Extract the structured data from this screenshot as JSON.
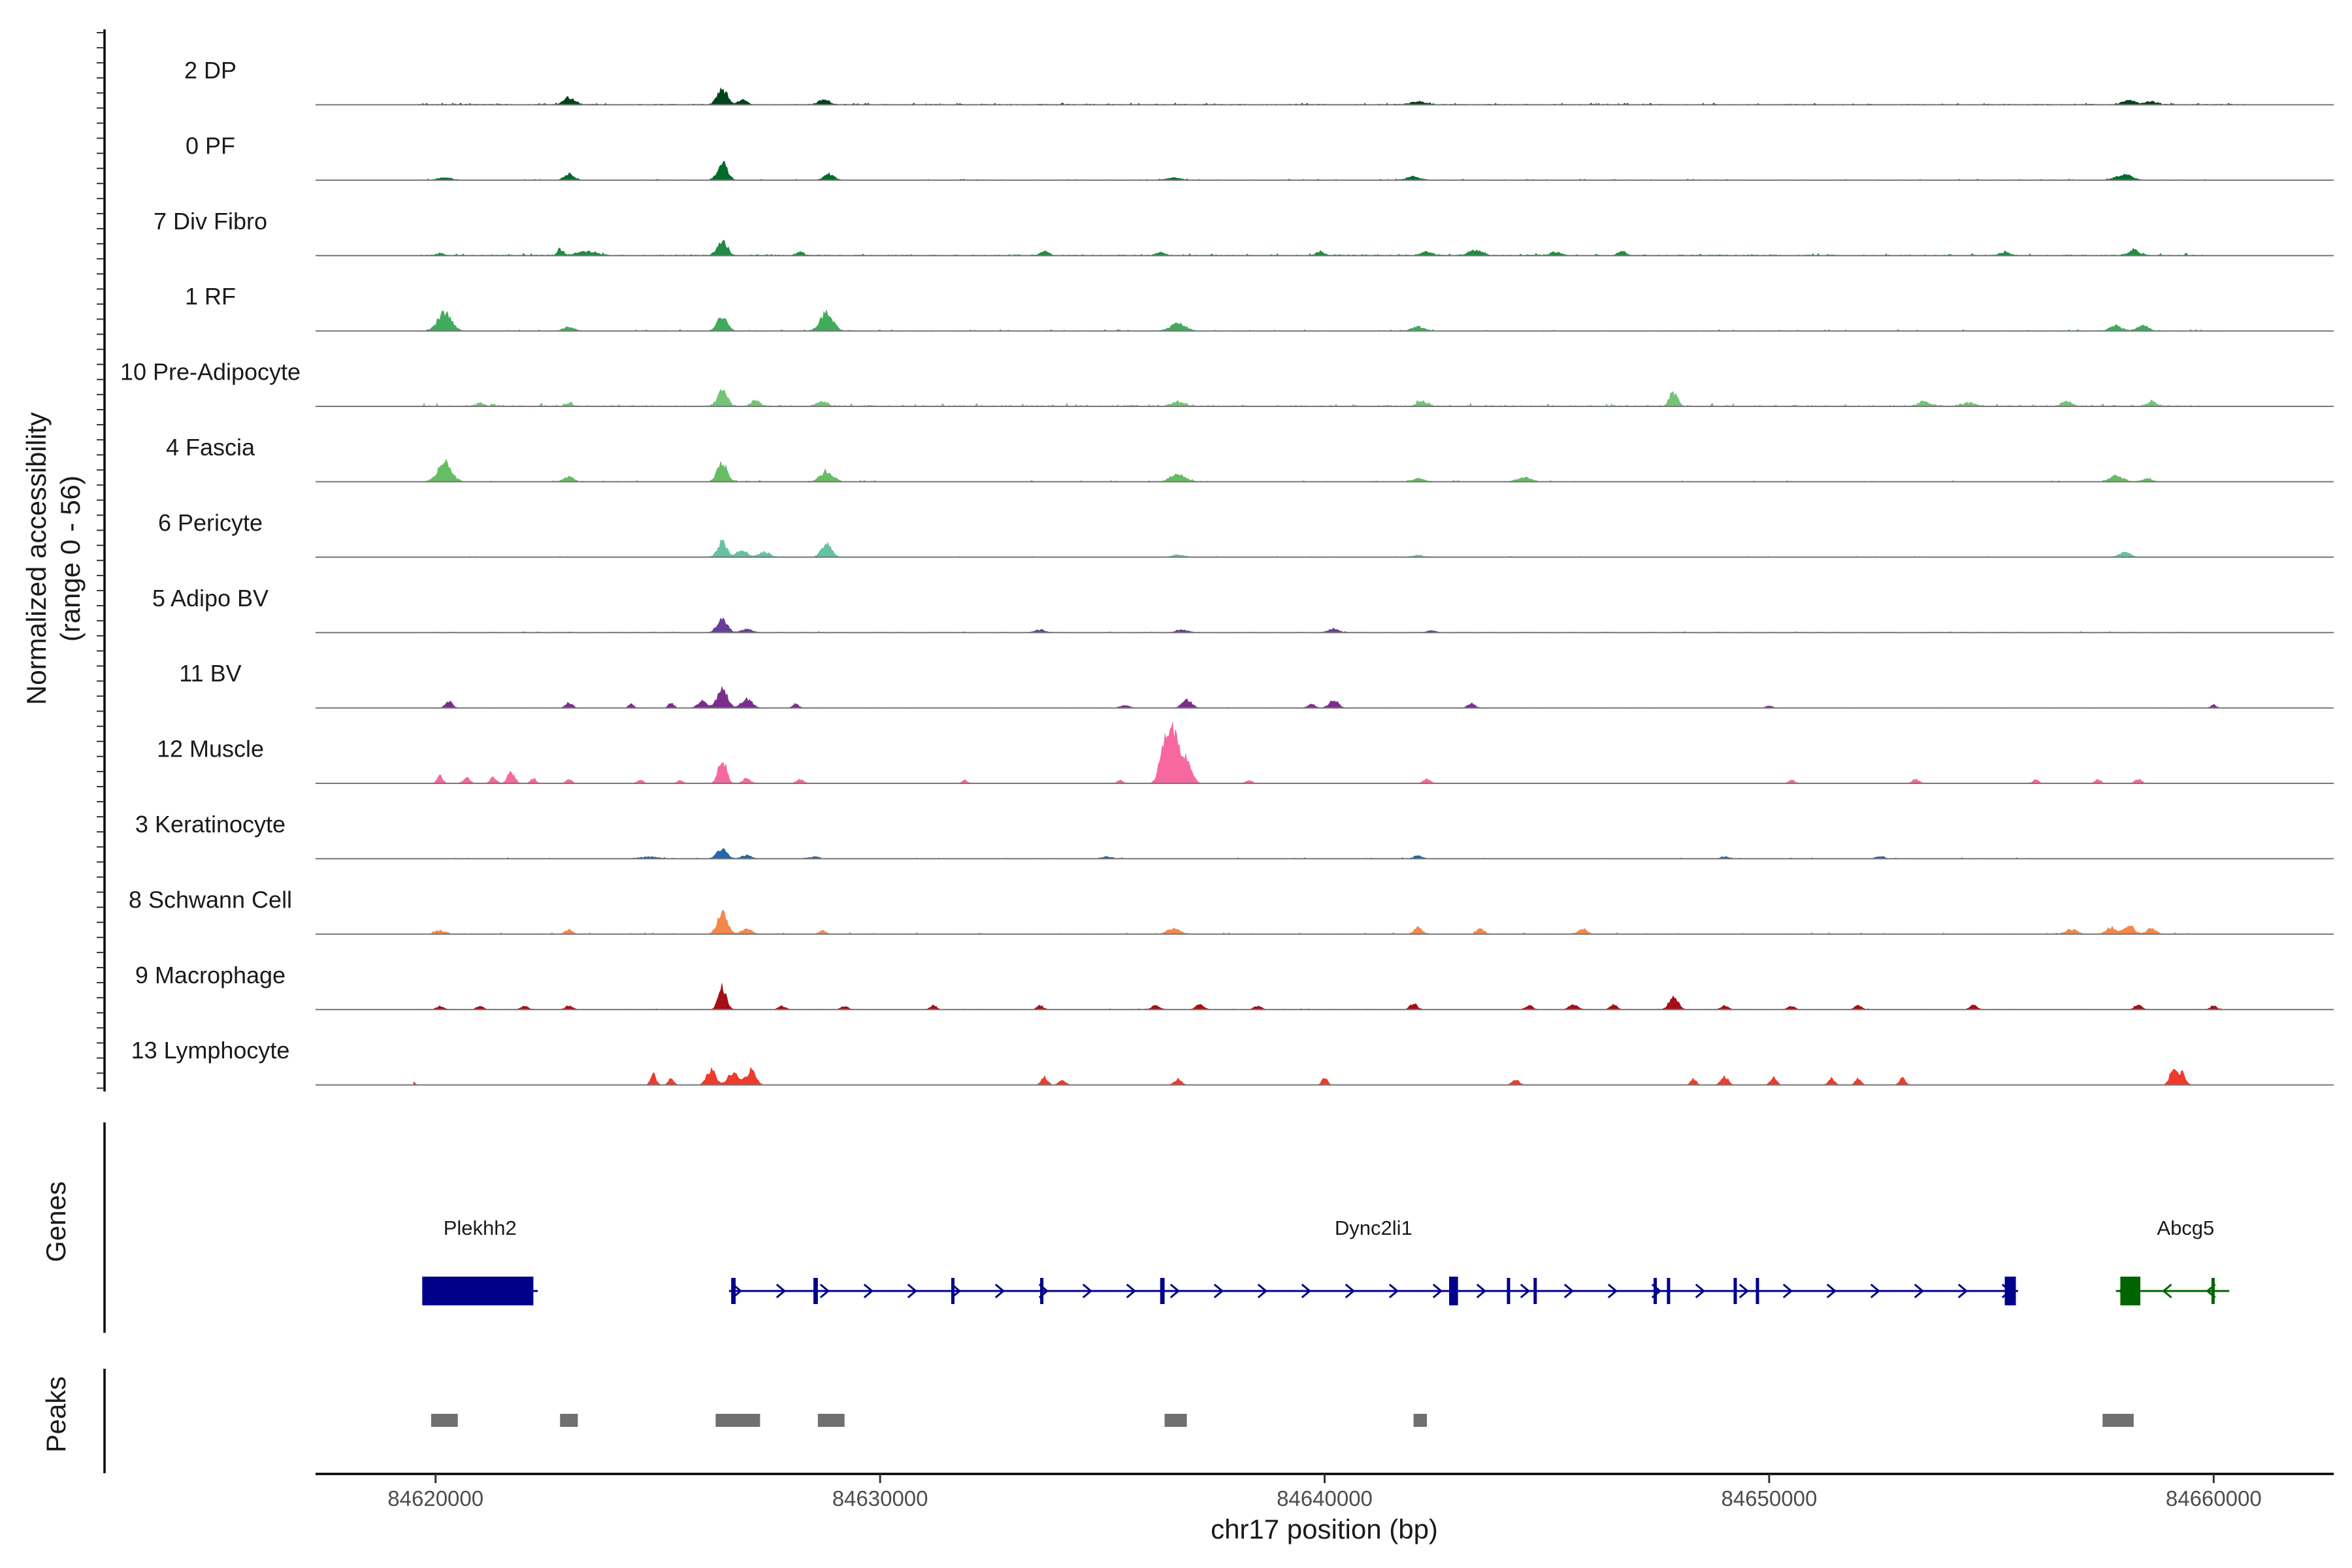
{
  "chart_data": {
    "type": "coverage-track",
    "region": {
      "chrom": "chr17",
      "start": 84617300,
      "end": 84662700
    },
    "y_axis_title": [
      "Normalized accessibility",
      "(range 0 - 56)"
    ],
    "y_range": [
      0,
      56
    ],
    "x_axis_title": "chr17 position (bp)",
    "x_ticks": [
      {
        "value": 84620000,
        "label": "84620000"
      },
      {
        "value": 84630000,
        "label": "84630000"
      },
      {
        "value": 84640000,
        "label": "84640000"
      },
      {
        "value": 84650000,
        "label": "84650000"
      },
      {
        "value": 84660000,
        "label": "84660000"
      }
    ],
    "tracks": [
      {
        "name": "2 DP",
        "color": "#00441b",
        "region": [
          84619500,
          84660700
        ],
        "noise": 0.6,
        "density": 0.85,
        "seed": 11,
        "peaks": [
          [
            84623000,
            5.5,
            120
          ],
          [
            84626450,
            12.0,
            110
          ],
          [
            84626900,
            4.0,
            90
          ],
          [
            84628750,
            4.5,
            110
          ],
          [
            84642100,
            2.5,
            150
          ],
          [
            84658100,
            2.8,
            160
          ],
          [
            84658600,
            2.2,
            120
          ]
        ]
      },
      {
        "name": "0 PF",
        "color": "#006d2c",
        "region": [
          84619500,
          84660700
        ],
        "noise": 0.4,
        "density": 0.8,
        "seed": 12,
        "peaks": [
          [
            84620200,
            2.0,
            140
          ],
          [
            84623000,
            4.5,
            100
          ],
          [
            84626450,
            13.0,
            110
          ],
          [
            84628850,
            4.5,
            110
          ],
          [
            84636600,
            1.5,
            150
          ],
          [
            84642000,
            2.5,
            150
          ],
          [
            84657900,
            3.0,
            150
          ],
          [
            84658100,
            2.5,
            120
          ]
        ]
      },
      {
        "name": "7 Div Fibro",
        "color": "#238b45",
        "region": [
          84619600,
          84659800
        ],
        "noise": 0.8,
        "density": 0.5,
        "seed": 13,
        "peaks": [
          [
            84620100,
            2.0,
            80
          ],
          [
            84622800,
            5.0,
            60
          ],
          [
            84623400,
            3.0,
            220
          ],
          [
            84626450,
            11.0,
            110
          ],
          [
            84628200,
            2.5,
            80
          ],
          [
            84633700,
            3.0,
            100
          ],
          [
            84636300,
            2.5,
            90
          ],
          [
            84639900,
            3.0,
            90
          ],
          [
            84642300,
            3.0,
            120
          ],
          [
            84643400,
            4.0,
            150
          ],
          [
            84645200,
            2.5,
            130
          ],
          [
            84646700,
            3.0,
            90
          ],
          [
            84655300,
            2.5,
            100
          ],
          [
            84658200,
            4.0,
            110
          ]
        ]
      },
      {
        "name": "1 RF",
        "color": "#41ab5d",
        "region": [
          84619600,
          84660100
        ],
        "noise": 0.5,
        "density": 0.6,
        "seed": 14,
        "peaks": [
          [
            84620200,
            14.0,
            150
          ],
          [
            84623000,
            3.0,
            120
          ],
          [
            84626450,
            11.0,
            110
          ],
          [
            84628800,
            14.0,
            140
          ],
          [
            84636700,
            5.5,
            170
          ],
          [
            84642100,
            3.0,
            140
          ],
          [
            84657800,
            4.0,
            130
          ],
          [
            84658400,
            4.0,
            130
          ]
        ]
      },
      {
        "name": "10 Pre-Adipocyte",
        "color": "#74c476",
        "region": [
          84619600,
          84659800
        ],
        "noise": 1.1,
        "density": 0.45,
        "seed": 15,
        "peaks": [
          [
            84621000,
            2.5,
            90
          ],
          [
            84623000,
            2.5,
            80
          ],
          [
            84626450,
            12.0,
            110
          ],
          [
            84627200,
            5.0,
            90
          ],
          [
            84628700,
            4.0,
            110
          ],
          [
            84636700,
            3.5,
            150
          ],
          [
            84642200,
            4.0,
            120
          ],
          [
            84647850,
            11.0,
            90
          ],
          [
            84653500,
            3.5,
            140
          ],
          [
            84654500,
            3.0,
            130
          ],
          [
            84656700,
            3.5,
            120
          ],
          [
            84658600,
            3.5,
            100
          ]
        ]
      },
      {
        "name": "4 Fascia",
        "color": "#66bd63",
        "region": [
          84619600,
          84660000
        ],
        "noise": 0.5,
        "density": 0.55,
        "seed": 16,
        "peaks": [
          [
            84620200,
            15.0,
            150
          ],
          [
            84623000,
            4.0,
            110
          ],
          [
            84626450,
            14.0,
            110
          ],
          [
            84628800,
            8.0,
            140
          ],
          [
            84636700,
            6.5,
            160
          ],
          [
            84642100,
            2.5,
            130
          ],
          [
            84644500,
            3.0,
            140
          ],
          [
            84657800,
            4.5,
            140
          ],
          [
            84658500,
            2.5,
            110
          ]
        ]
      },
      {
        "name": "6 Pericyte",
        "color": "#66c2a5",
        "region": [
          84619600,
          84659900
        ],
        "noise": 0.35,
        "density": 0.4,
        "seed": 17,
        "peaks": [
          [
            84626450,
            12.0,
            100
          ],
          [
            84626900,
            6.0,
            110
          ],
          [
            84627400,
            4.0,
            120
          ],
          [
            84628800,
            11.0,
            110
          ],
          [
            84636700,
            2.0,
            120
          ],
          [
            84642100,
            1.5,
            120
          ],
          [
            84658000,
            3.5,
            130
          ]
        ]
      },
      {
        "name": "5 Adipo BV",
        "color": "#6a3d9a",
        "region": [
          84619600,
          84659900
        ],
        "noise": 0.35,
        "density": 0.5,
        "seed": 18,
        "peaks": [
          [
            84626450,
            10.0,
            110
          ],
          [
            84627000,
            2.5,
            120
          ],
          [
            84633600,
            2.0,
            110
          ],
          [
            84636800,
            2.0,
            130
          ],
          [
            84640200,
            3.0,
            110
          ],
          [
            84642400,
            1.5,
            100
          ]
        ]
      },
      {
        "name": "11 BV",
        "color": "#7b2d8e",
        "region": [
          84619500,
          84660300
        ],
        "noise": 0.2,
        "density": 0.15,
        "seed": 19,
        "peaks": [
          [
            84620300,
            5.0,
            80
          ],
          [
            84623000,
            4.0,
            80
          ],
          [
            84624400,
            3.0,
            60
          ],
          [
            84625300,
            4.0,
            60
          ],
          [
            84626000,
            5.5,
            100
          ],
          [
            84626450,
            15.0,
            110
          ],
          [
            84627000,
            7.0,
            120
          ],
          [
            84628100,
            3.0,
            70
          ],
          [
            84635500,
            2.0,
            100
          ],
          [
            84636900,
            6.0,
            110
          ],
          [
            84639700,
            3.0,
            80
          ],
          [
            84640200,
            6.5,
            100
          ],
          [
            84643300,
            3.5,
            80
          ],
          [
            84650000,
            2.0,
            70
          ],
          [
            84660000,
            2.5,
            60
          ]
        ]
      },
      {
        "name": "12 Muscle",
        "color": "#f768a1",
        "region": [
          84619500,
          84659800
        ],
        "noise": 0.2,
        "density": 0.12,
        "seed": 20,
        "peaks": [
          [
            84620100,
            6.0,
            60
          ],
          [
            84620700,
            4.0,
            80
          ],
          [
            84621300,
            4.5,
            70
          ],
          [
            84621700,
            9.0,
            80
          ],
          [
            84622200,
            4.0,
            60
          ],
          [
            84623000,
            3.0,
            70
          ],
          [
            84624600,
            3.0,
            60
          ],
          [
            84625500,
            2.5,
            60
          ],
          [
            84626450,
            19.0,
            90
          ],
          [
            84627000,
            4.0,
            80
          ],
          [
            84628200,
            3.0,
            80
          ],
          [
            84631900,
            2.5,
            60
          ],
          [
            84635400,
            2.5,
            60
          ],
          [
            84636400,
            27.0,
            110
          ],
          [
            84636600,
            38.0,
            120
          ],
          [
            84636900,
            17.0,
            110
          ],
          [
            84638300,
            2.5,
            70
          ],
          [
            84642300,
            3.0,
            80
          ],
          [
            84650500,
            3.0,
            60
          ],
          [
            84653300,
            3.5,
            70
          ],
          [
            84656000,
            3.0,
            60
          ],
          [
            84657400,
            3.0,
            60
          ],
          [
            84658300,
            3.5,
            70
          ]
        ]
      },
      {
        "name": "3 Keratinocyte",
        "color": "#2166ac",
        "region": [
          84619500,
          84660200
        ],
        "noise": 0.4,
        "density": 0.35,
        "seed": 21,
        "peaks": [
          [
            84624800,
            1.5,
            200
          ],
          [
            84626450,
            8.0,
            110
          ],
          [
            84627000,
            2.5,
            120
          ],
          [
            84628500,
            1.5,
            120
          ],
          [
            84635100,
            1.5,
            120
          ],
          [
            84642100,
            2.5,
            90
          ],
          [
            84649000,
            1.5,
            100
          ],
          [
            84652500,
            1.5,
            100
          ]
        ]
      },
      {
        "name": "8 Schwann Cell",
        "color": "#f4874b",
        "region": [
          84619500,
          84659800
        ],
        "noise": 0.6,
        "density": 0.4,
        "seed": 22,
        "peaks": [
          [
            84620100,
            2.5,
            120
          ],
          [
            84623000,
            3.5,
            80
          ],
          [
            84626450,
            17.0,
            110
          ],
          [
            84627000,
            4.0,
            120
          ],
          [
            84628700,
            2.5,
            80
          ],
          [
            84636600,
            5.0,
            130
          ],
          [
            84642100,
            5.0,
            90
          ],
          [
            84643500,
            4.0,
            80
          ],
          [
            84645800,
            4.0,
            100
          ],
          [
            84656800,
            3.5,
            130
          ],
          [
            84657700,
            5.0,
            120
          ],
          [
            84658100,
            7.0,
            110
          ],
          [
            84658600,
            4.5,
            100
          ]
        ]
      },
      {
        "name": "9 Macrophage",
        "color": "#a50f15",
        "region": [
          84619500,
          84660300
        ],
        "noise": 0.3,
        "density": 0.25,
        "seed": 23,
        "peaks": [
          [
            84620100,
            2.5,
            80
          ],
          [
            84621000,
            3.0,
            70
          ],
          [
            84622000,
            3.0,
            80
          ],
          [
            84623000,
            3.0,
            80
          ],
          [
            84626450,
            17.0,
            90
          ],
          [
            84627800,
            2.5,
            80
          ],
          [
            84629200,
            2.5,
            80
          ],
          [
            84631200,
            3.0,
            70
          ],
          [
            84633600,
            3.0,
            70
          ],
          [
            84636200,
            3.0,
            90
          ],
          [
            84637200,
            4.0,
            90
          ],
          [
            84638500,
            3.0,
            80
          ],
          [
            84642000,
            4.5,
            80
          ],
          [
            84644600,
            3.0,
            80
          ],
          [
            84645600,
            3.5,
            100
          ],
          [
            84646500,
            3.5,
            80
          ],
          [
            84647850,
            10.0,
            100
          ],
          [
            84649000,
            3.0,
            80
          ],
          [
            84650500,
            2.5,
            80
          ],
          [
            84652000,
            3.0,
            80
          ],
          [
            84654600,
            3.5,
            80
          ],
          [
            84658300,
            3.5,
            80
          ],
          [
            84660000,
            3.0,
            70
          ]
        ]
      },
      {
        "name": "13 Lymphocyte",
        "color": "#ef3b2c",
        "region": [
          84619500,
          84660000
        ],
        "noise": 0.1,
        "density": 0.05,
        "seed": 24,
        "peaks": [
          [
            84619500,
            2.5,
            40
          ],
          [
            84624900,
            8.5,
            60
          ],
          [
            84625300,
            5.0,
            60
          ],
          [
            84626200,
            12.0,
            100
          ],
          [
            84626700,
            10.0,
            120
          ],
          [
            84627100,
            12.0,
            100
          ],
          [
            84633700,
            6.0,
            70
          ],
          [
            84634100,
            4.0,
            70
          ],
          [
            84636700,
            4.5,
            80
          ],
          [
            84640000,
            6.5,
            60
          ],
          [
            84644300,
            4.0,
            80
          ],
          [
            84648300,
            5.0,
            60
          ],
          [
            84649000,
            6.5,
            80
          ],
          [
            84650100,
            6.0,
            70
          ],
          [
            84651400,
            5.0,
            70
          ],
          [
            84652000,
            5.5,
            60
          ],
          [
            84653000,
            5.0,
            70
          ],
          [
            84659100,
            13.0,
            80
          ],
          [
            84659300,
            9.0,
            70
          ]
        ]
      }
    ],
    "genes_track_title": "Genes",
    "genes": [
      {
        "name": "Plekhh2",
        "strand": "+",
        "start": 84619700,
        "end": 84622300,
        "color": "#00008b",
        "exons": [
          [
            84619700,
            84622200
          ]
        ]
      },
      {
        "name": "Dync2li1",
        "strand": "+",
        "start": 84626600,
        "end": 84655600,
        "color": "#00008b",
        "exons": [
          [
            84626650,
            84626750
          ],
          [
            84628500,
            84628600
          ],
          [
            84631600,
            84631650
          ],
          [
            84633600,
            84633650
          ],
          [
            84636300,
            84636400
          ],
          [
            84642800,
            84643000
          ],
          [
            84644100,
            84644150
          ],
          [
            84644700,
            84644750
          ],
          [
            84647400,
            84647450
          ],
          [
            84647700,
            84647750
          ],
          [
            84649200,
            84649250
          ],
          [
            84649700,
            84649750
          ],
          [
            84655300,
            84655550
          ]
        ]
      },
      {
        "name": "Abcg5",
        "strand": "-",
        "start": 84657800,
        "end": 84660350,
        "color": "#006400",
        "exons": [
          [
            84657900,
            84658350
          ],
          [
            84659950,
            84660000
          ]
        ]
      }
    ],
    "peaks_track_title": "Peaks",
    "peaks": [
      [
        84619900,
        84620500
      ],
      [
        84622800,
        84623200
      ],
      [
        84626300,
        84627300
      ],
      [
        84628600,
        84629200
      ],
      [
        84636400,
        84636900
      ],
      [
        84642000,
        84642300
      ],
      [
        84657500,
        84658200
      ]
    ]
  }
}
